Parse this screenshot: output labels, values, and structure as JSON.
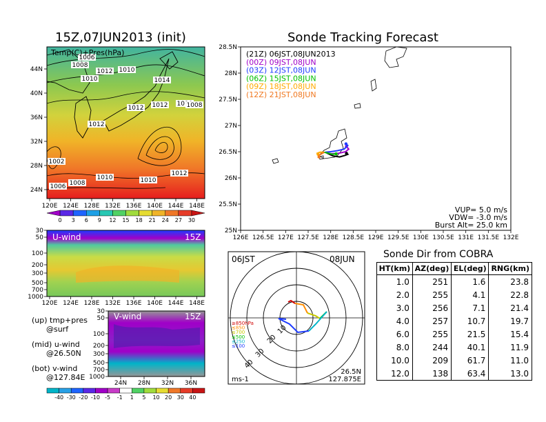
{
  "left_title": "15Z,07JUN2013 (init)",
  "main_title": "Sonde Tracking Forecast",
  "map_panel": {
    "label": "Temp(C)+Pres(hPa)",
    "x_ticks": [
      "120E",
      "124E",
      "128E",
      "132E",
      "136E",
      "140E",
      "144E",
      "148E"
    ],
    "y_ticks": [
      "44N",
      "40N",
      "36N",
      "32N",
      "28N",
      "24N"
    ],
    "isobar_labels": [
      "1006",
      "1008",
      "1012",
      "1010",
      "1010",
      "1014",
      "1012",
      "1012",
      "1010",
      "1008",
      "1012",
      "1002",
      "1006",
      "1008",
      "1010",
      "1010",
      "1012"
    ],
    "colorbar": [
      "0",
      "3",
      "6",
      "9",
      "12",
      "15",
      "18",
      "21",
      "24",
      "27",
      "30"
    ]
  },
  "u_panel": {
    "label": "U-wind",
    "time": "15Z",
    "y_ticks": [
      "30",
      "50",
      "100",
      "200",
      "300",
      "500",
      "700",
      "1000"
    ],
    "x_ticks": [
      "120E",
      "124E",
      "128E",
      "132E",
      "136E",
      "140E",
      "144E",
      "148E"
    ]
  },
  "v_panel": {
    "label": "V-wind",
    "time": "15Z",
    "y_ticks": [
      "30",
      "50",
      "100",
      "200",
      "300",
      "500",
      "700",
      "1000"
    ],
    "x_ticks": [
      "24N",
      "28N",
      "32N",
      "36N"
    ]
  },
  "notes": [
    "(up) tmp+pres",
    "      @surf",
    "(mid) u-wind",
    "      @26.50N",
    "(bot) v-wind",
    "      @127.84E"
  ],
  "wind_colorbar": [
    "-40",
    "-30",
    "-20",
    "-10",
    "-5",
    "-1",
    "1",
    "5",
    "10",
    "20",
    "30",
    "40"
  ],
  "chart_data": {
    "type": "line",
    "title": "Sonde Tracking Forecast",
    "x_ticks": [
      "126E",
      "126.5E",
      "127E",
      "127.5E",
      "128E",
      "128.5E",
      "129E",
      "129.5E",
      "130E",
      "130.5E",
      "131E",
      "131.5E",
      "132E"
    ],
    "y_ticks": [
      "28.5N",
      "28N",
      "27.5N",
      "27N",
      "26.5N",
      "26N",
      "25.5N",
      "25N"
    ],
    "xlim": [
      126,
      132
    ],
    "ylim": [
      25,
      28.5
    ],
    "legend": [
      {
        "label": "(21Z)  06JST,08JUN2013",
        "color": "#000000"
      },
      {
        "label": "(00Z)  09JST,08JUN",
        "color": "#a000c8"
      },
      {
        "label": "(03Z)  12JST,08JUN",
        "color": "#1e3cff"
      },
      {
        "label": "(06Z)  15JST,08JUN",
        "color": "#00c000"
      },
      {
        "label": "(09Z)  18JST,08JUN",
        "color": "#ffaa00"
      },
      {
        "label": "(12Z)  21JST,08JUN",
        "color": "#f07820"
      }
    ],
    "series": [
      {
        "color": "#000000",
        "x": [
          127.9,
          128.05,
          128.2,
          128.32,
          128.38,
          128.35
        ],
        "y": [
          26.48,
          26.42,
          26.4,
          26.43,
          26.45,
          26.47
        ]
      },
      {
        "color": "#a000c8",
        "x": [
          127.9,
          128.02,
          128.18,
          128.33,
          128.4,
          128.35
        ],
        "y": [
          26.48,
          26.46,
          26.47,
          26.5,
          26.55,
          26.6
        ]
      },
      {
        "color": "#1e3cff",
        "x": [
          127.88,
          128.0,
          128.15,
          128.3,
          128.38,
          128.34
        ],
        "y": [
          26.49,
          26.5,
          26.52,
          26.55,
          26.62,
          26.65
        ]
      },
      {
        "color": "#00c000",
        "x": [
          127.86,
          127.95,
          128.05,
          128.12
        ],
        "y": [
          26.49,
          26.47,
          26.45,
          26.46
        ]
      },
      {
        "color": "#ffaa00",
        "x": [
          127.86,
          127.76,
          127.7,
          127.72
        ],
        "y": [
          26.49,
          26.49,
          26.47,
          26.45
        ]
      },
      {
        "color": "#f07820",
        "x": [
          127.86,
          127.8,
          127.74,
          127.74
        ],
        "y": [
          26.49,
          26.46,
          26.43,
          26.4
        ]
      }
    ],
    "info": [
      "VUP=  5.0  m/s",
      "VDW= -3.0  m/s",
      "Burst Alt=  25.0  km"
    ]
  },
  "polar": {
    "title_left": "06JST",
    "title_right": "08JUN",
    "ring_labels": [
      "10",
      "20",
      "30",
      "40"
    ],
    "legend": [
      {
        "label": "≥850hPa",
        "color": "#d00000"
      },
      {
        "label": "≤850",
        "color": "#ff8c00"
      },
      {
        "label": "≤700",
        "color": "#c8c800"
      },
      {
        "label": "≤500",
        "color": "#00c000"
      },
      {
        "label": "≤250",
        "color": "#00b4c8"
      },
      {
        "label": "≤100",
        "color": "#1e3cff"
      }
    ],
    "unit": "ms-1",
    "loc_lat": "26.5N",
    "loc_lon": "127.875E"
  },
  "sonde_table": {
    "title": "Sonde Dir from COBRA",
    "headers": [
      "HT(km)",
      "AZ(deg)",
      "EL(deg)",
      "RNG(km)"
    ],
    "rows": [
      [
        "1.0",
        "251",
        "1.6",
        "23.8"
      ],
      [
        "2.0",
        "255",
        "4.1",
        "22.8"
      ],
      [
        "3.0",
        "256",
        "7.1",
        "21.4"
      ],
      [
        "4.0",
        "257",
        "10.7",
        "19.7"
      ],
      [
        "6.0",
        "255",
        "21.5",
        "15.4"
      ],
      [
        "8.0",
        "244",
        "40.1",
        "11.9"
      ],
      [
        "10.0",
        "209",
        "61.7",
        "11.0"
      ],
      [
        "12.0",
        "138",
        "63.4",
        "13.0"
      ]
    ]
  }
}
